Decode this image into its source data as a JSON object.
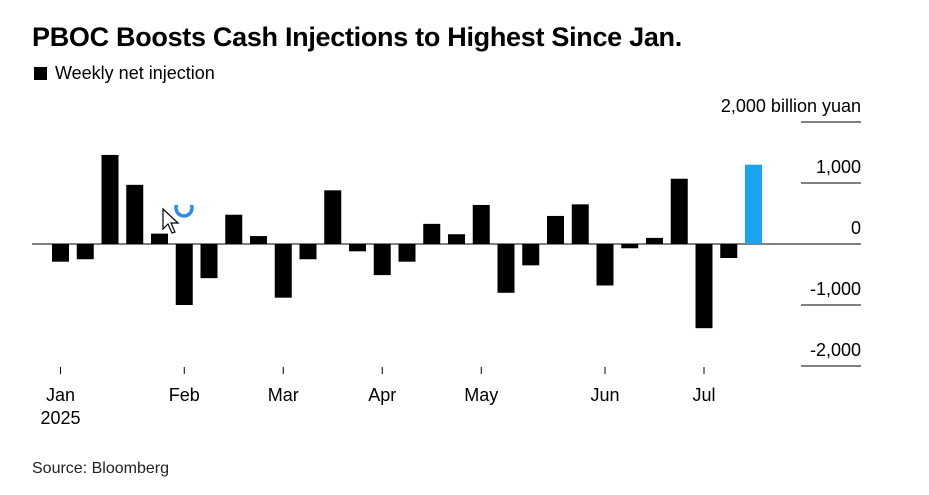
{
  "title": "PBOC Boosts Cash Injections to Highest Since Jan.",
  "legend_label": "Weekly net injection",
  "source": "Source: Bloomberg",
  "colors": {
    "bar": "#000000",
    "highlight": "#1aa3f0",
    "grid": "#000000"
  },
  "chart_data": {
    "type": "bar",
    "title": "PBOC Boosts Cash Injections to Highest Since Jan.",
    "ylabel": "billion yuan",
    "ylim": [
      -2000,
      2000
    ],
    "y_ticks": [
      {
        "value": 2000,
        "label": "2,000 billion yuan"
      },
      {
        "value": 1000,
        "label": "1,000"
      },
      {
        "value": 0,
        "label": "0"
      },
      {
        "value": -1000,
        "label": "-1,000"
      },
      {
        "value": -2000,
        "label": "-2,000"
      }
    ],
    "x_ticks": [
      {
        "bar_index": 0,
        "label": "Jan",
        "sublabel": "2025"
      },
      {
        "bar_index": 5,
        "label": "Feb"
      },
      {
        "bar_index": 9,
        "label": "Mar"
      },
      {
        "bar_index": 13,
        "label": "Apr"
      },
      {
        "bar_index": 17,
        "label": "May"
      },
      {
        "bar_index": 22,
        "label": "Jun"
      },
      {
        "bar_index": 26,
        "label": "Jul"
      }
    ],
    "series": [
      {
        "name": "Weekly net injection",
        "values": [
          -290,
          -250,
          1460,
          970,
          170,
          -1000,
          -560,
          480,
          130,
          -880,
          -250,
          880,
          -120,
          -510,
          -290,
          330,
          160,
          640,
          -800,
          -350,
          460,
          650,
          -680,
          -70,
          100,
          1070,
          -1380,
          -230,
          1300
        ]
      }
    ],
    "highlight_index": 28,
    "grid": "horizontal",
    "legend_position": "top-left"
  }
}
